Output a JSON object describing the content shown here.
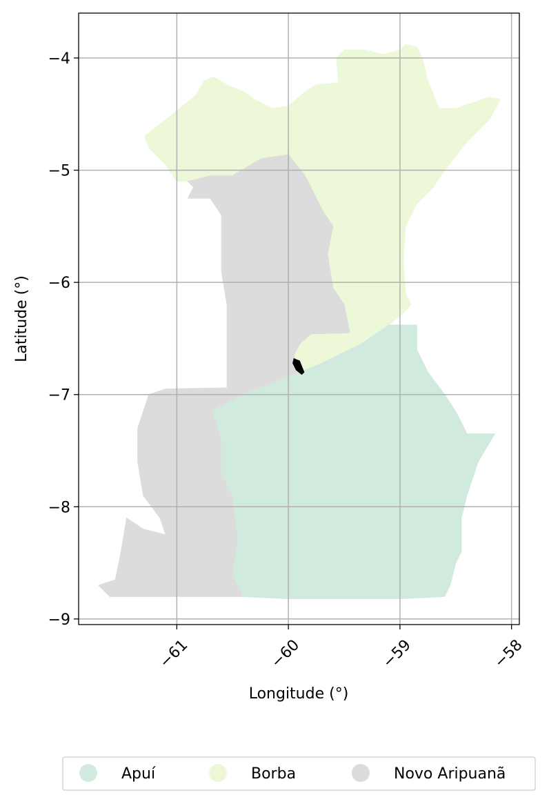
{
  "map": {
    "xlabel": "Longitude (°)",
    "ylabel": "Latitude (°)",
    "xlim": [
      -61.88,
      -57.93
    ],
    "ylim": [
      -9.05,
      -3.6
    ],
    "grid": true,
    "x_ticks": [
      {
        "value": -61,
        "label": "−61"
      },
      {
        "value": -60,
        "label": "−60"
      },
      {
        "value": -59,
        "label": "−59"
      },
      {
        "value": -58,
        "label": "−58"
      }
    ],
    "y_ticks": [
      {
        "value": -4,
        "label": "−4"
      },
      {
        "value": -5,
        "label": "−5"
      },
      {
        "value": -6,
        "label": "−6"
      },
      {
        "value": -7,
        "label": "−7"
      },
      {
        "value": -8,
        "label": "−8"
      },
      {
        "value": -9,
        "label": "−9"
      }
    ],
    "regions": [
      {
        "name": "Borba",
        "color": "#edf8d9",
        "coords": [
          [
            -61.29,
            -4.7
          ],
          [
            -61.0,
            -4.47
          ],
          [
            -60.83,
            -4.33
          ],
          [
            -60.75,
            -4.2
          ],
          [
            -60.67,
            -4.17
          ],
          [
            -60.55,
            -4.24
          ],
          [
            -60.4,
            -4.3
          ],
          [
            -60.3,
            -4.37
          ],
          [
            -60.15,
            -4.45
          ],
          [
            -60.0,
            -4.43
          ],
          [
            -59.85,
            -4.3
          ],
          [
            -59.75,
            -4.24
          ],
          [
            -59.55,
            -4.22
          ],
          [
            -59.57,
            -4.0
          ],
          [
            -59.5,
            -3.93
          ],
          [
            -59.3,
            -3.93
          ],
          [
            -59.15,
            -3.97
          ],
          [
            -59.0,
            -3.93
          ],
          [
            -58.95,
            -3.88
          ],
          [
            -58.85,
            -3.9
          ],
          [
            -58.8,
            -4.0
          ],
          [
            -58.75,
            -4.2
          ],
          [
            -58.65,
            -4.45
          ],
          [
            -58.5,
            -4.45
          ],
          [
            -58.35,
            -4.4
          ],
          [
            -58.2,
            -4.35
          ],
          [
            -58.1,
            -4.37
          ],
          [
            -58.2,
            -4.55
          ],
          [
            -58.4,
            -4.75
          ],
          [
            -58.6,
            -5.0
          ],
          [
            -58.7,
            -5.15
          ],
          [
            -58.85,
            -5.3
          ],
          [
            -58.95,
            -5.5
          ],
          [
            -58.97,
            -5.8
          ],
          [
            -58.95,
            -6.1
          ],
          [
            -58.9,
            -6.2
          ],
          [
            -59.0,
            -6.3
          ],
          [
            -59.1,
            -6.38
          ],
          [
            -59.35,
            -6.55
          ],
          [
            -59.7,
            -6.72
          ],
          [
            -59.9,
            -6.8
          ],
          [
            -59.95,
            -6.65
          ],
          [
            -59.9,
            -6.55
          ],
          [
            -59.8,
            -6.46
          ],
          [
            -59.45,
            -6.45
          ],
          [
            -59.5,
            -6.2
          ],
          [
            -59.6,
            -6.05
          ],
          [
            -59.65,
            -5.75
          ],
          [
            -59.6,
            -5.5
          ],
          [
            -59.7,
            -5.35
          ],
          [
            -59.75,
            -5.25
          ],
          [
            -59.9,
            -5.0
          ],
          [
            -60.0,
            -4.88
          ],
          [
            -60.1,
            -4.95
          ],
          [
            -60.45,
            -5.05
          ],
          [
            -60.7,
            -5.1
          ],
          [
            -61.0,
            -5.1
          ],
          [
            -61.1,
            -4.95
          ],
          [
            -61.25,
            -4.8
          ]
        ]
      },
      {
        "name": "Novo Aripuanã",
        "color": "#dcdcdc",
        "coords": [
          [
            -60.9,
            -5.1
          ],
          [
            -60.7,
            -5.05
          ],
          [
            -60.5,
            -5.05
          ],
          [
            -60.25,
            -4.9
          ],
          [
            -60.0,
            -4.86
          ],
          [
            -59.85,
            -5.05
          ],
          [
            -59.7,
            -5.35
          ],
          [
            -59.6,
            -5.5
          ],
          [
            -59.65,
            -5.75
          ],
          [
            -59.6,
            -6.05
          ],
          [
            -59.5,
            -6.2
          ],
          [
            -59.45,
            -6.45
          ],
          [
            -59.8,
            -6.46
          ],
          [
            -59.9,
            -6.55
          ],
          [
            -59.95,
            -6.65
          ],
          [
            -59.9,
            -6.8
          ],
          [
            -60.4,
            -7.0
          ],
          [
            -60.68,
            -7.14
          ],
          [
            -60.6,
            -7.4
          ],
          [
            -60.6,
            -7.7
          ],
          [
            -60.5,
            -7.9
          ],
          [
            -60.45,
            -8.3
          ],
          [
            -60.5,
            -8.6
          ],
          [
            -60.4,
            -8.8
          ],
          [
            -60.7,
            -8.8
          ],
          [
            -61.2,
            -8.8
          ],
          [
            -61.6,
            -8.8
          ],
          [
            -61.7,
            -8.7
          ],
          [
            -61.55,
            -8.65
          ],
          [
            -61.5,
            -8.4
          ],
          [
            -61.45,
            -8.1
          ],
          [
            -61.3,
            -8.2
          ],
          [
            -61.1,
            -8.25
          ],
          [
            -61.15,
            -8.1
          ],
          [
            -61.3,
            -7.9
          ],
          [
            -61.35,
            -7.6
          ],
          [
            -61.35,
            -7.3
          ],
          [
            -61.25,
            -7.0
          ],
          [
            -61.1,
            -6.95
          ],
          [
            -60.55,
            -6.94
          ],
          [
            -60.55,
            -6.5
          ],
          [
            -60.55,
            -6.2
          ],
          [
            -60.6,
            -5.9
          ],
          [
            -60.6,
            -5.6
          ],
          [
            -60.6,
            -5.4
          ],
          [
            -60.7,
            -5.25
          ],
          [
            -60.9,
            -5.25
          ],
          [
            -60.85,
            -5.15
          ]
        ]
      },
      {
        "name": "Apuí",
        "color": "#d0ebdd",
        "coords": [
          [
            -60.68,
            -7.14
          ],
          [
            -60.4,
            -7.0
          ],
          [
            -59.9,
            -6.8
          ],
          [
            -59.7,
            -6.72
          ],
          [
            -59.35,
            -6.55
          ],
          [
            -59.1,
            -6.38
          ],
          [
            -58.85,
            -6.38
          ],
          [
            -58.85,
            -6.6
          ],
          [
            -58.75,
            -6.8
          ],
          [
            -58.6,
            -7.0
          ],
          [
            -58.5,
            -7.15
          ],
          [
            -58.4,
            -7.35
          ],
          [
            -58.15,
            -7.35
          ],
          [
            -58.3,
            -7.6
          ],
          [
            -58.4,
            -7.9
          ],
          [
            -58.45,
            -8.1
          ],
          [
            -58.45,
            -8.4
          ],
          [
            -58.5,
            -8.5
          ],
          [
            -58.55,
            -8.7
          ],
          [
            -58.6,
            -8.8
          ],
          [
            -59.0,
            -8.82
          ],
          [
            -59.5,
            -8.82
          ],
          [
            -60.0,
            -8.82
          ],
          [
            -60.4,
            -8.8
          ],
          [
            -60.5,
            -8.6
          ],
          [
            -60.45,
            -8.3
          ],
          [
            -60.5,
            -7.9
          ],
          [
            -60.6,
            -7.7
          ],
          [
            -60.6,
            -7.4
          ]
        ]
      },
      {
        "name": "",
        "color": "#000000",
        "coords": [
          [
            -59.95,
            -6.68
          ],
          [
            -59.9,
            -6.7
          ],
          [
            -59.86,
            -6.8
          ],
          [
            -59.88,
            -6.82
          ],
          [
            -59.93,
            -6.78
          ],
          [
            -59.96,
            -6.72
          ]
        ]
      }
    ],
    "legend": {
      "placement": "bottom-center",
      "items": [
        {
          "label": "Apuí",
          "color": "#d0ebdd"
        },
        {
          "label": "Borba",
          "color": "#edf8d9"
        },
        {
          "label": "Novo Aripuanã",
          "color": "#dcdcdc"
        }
      ]
    }
  }
}
